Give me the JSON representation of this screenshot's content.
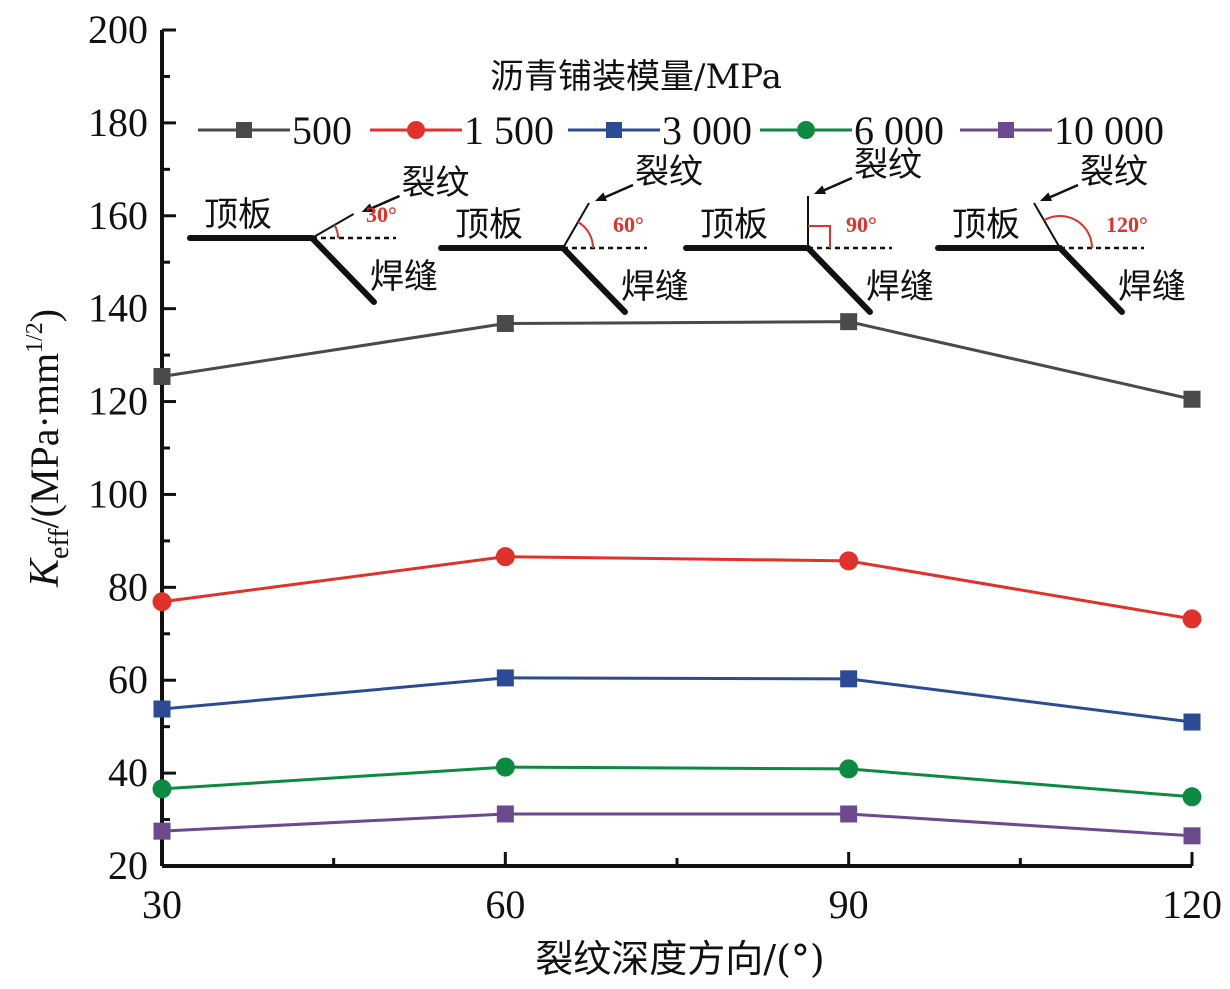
{
  "chart_data": {
    "type": "line",
    "title": "",
    "xlabel": "裂纹深度方向/(°)",
    "ylabel": {
      "symbol": "K",
      "subscript": "eff",
      "unit_prefix": "/(MPa·mm",
      "unit_superscript": "1/2",
      "unit_suffix": ")"
    },
    "x": [
      30,
      60,
      90,
      120
    ],
    "xlim": [
      30,
      120
    ],
    "ylim": [
      20,
      200
    ],
    "x_ticks": [
      "30",
      "60",
      "90",
      "120"
    ],
    "x_minor_ticks": [
      45,
      75,
      105
    ],
    "y_ticks": [
      "20",
      "40",
      "60",
      "80",
      "100",
      "120",
      "140",
      "160",
      "180",
      "200"
    ],
    "y_minor_step": 10,
    "grid": false,
    "legend": {
      "title": "沥青铺装模量/MPa",
      "placement": "top"
    },
    "series": [
      {
        "name": "500",
        "color": "#4a4a4a",
        "marker": "square",
        "values": [
          125.4,
          136.8,
          137.2,
          120.5
        ]
      },
      {
        "name": "1 500",
        "color": "#e0322b",
        "marker": "circle",
        "values": [
          76.9,
          86.6,
          85.7,
          73.2
        ]
      },
      {
        "name": "3 000",
        "color": "#2b4c94",
        "marker": "square",
        "values": [
          53.8,
          60.5,
          60.3,
          51.0
        ]
      },
      {
        "name": "6 000",
        "color": "#0d8a42",
        "marker": "circle",
        "values": [
          36.6,
          41.3,
          40.9,
          34.9
        ]
      },
      {
        "name": "10 000",
        "color": "#6b4a8e",
        "marker": "square",
        "values": [
          27.5,
          31.2,
          31.2,
          26.5
        ]
      }
    ],
    "annotations": {
      "insets": [
        {
          "angle": 30,
          "angle_label": "30°",
          "plate_label": "顶板",
          "crack_label": "裂纹",
          "weld_label": "焊缝"
        },
        {
          "angle": 60,
          "angle_label": "60°",
          "plate_label": "顶板",
          "crack_label": "裂纹",
          "weld_label": "焊缝"
        },
        {
          "angle": 90,
          "angle_label": "90°",
          "plate_label": "顶板",
          "crack_label": "裂纹",
          "weld_label": "焊缝"
        },
        {
          "angle": 120,
          "angle_label": "120°",
          "plate_label": "顶板",
          "crack_label": "裂纹",
          "weld_label": "焊缝"
        }
      ],
      "angle_color": "#e0322b"
    }
  }
}
